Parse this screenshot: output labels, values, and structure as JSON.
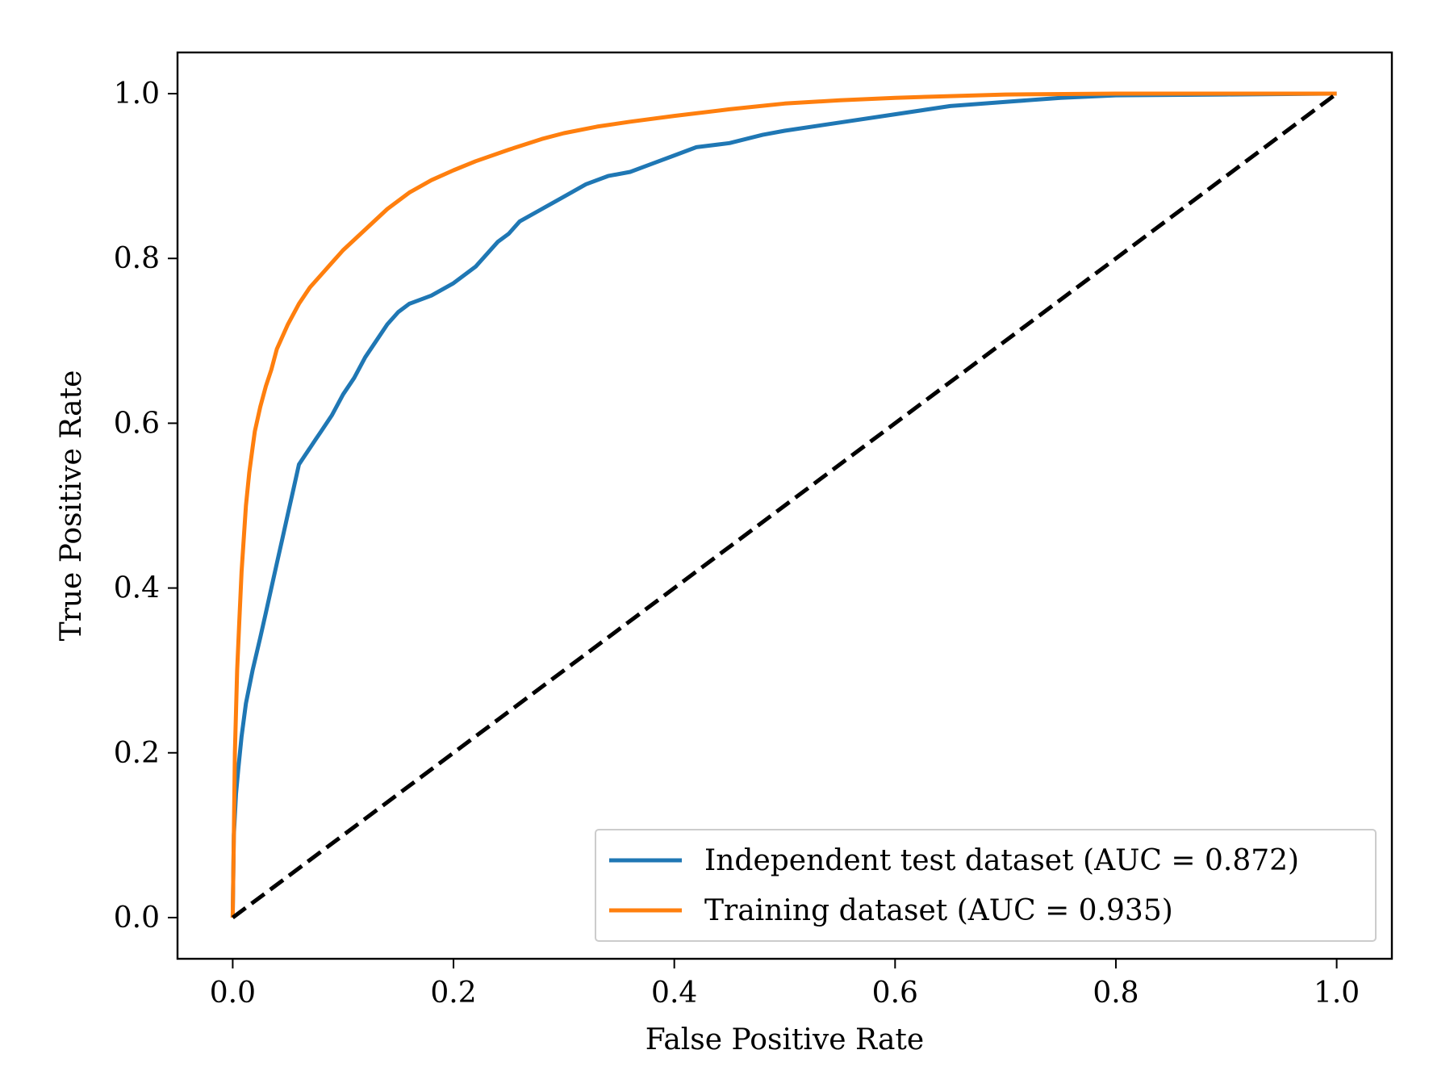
{
  "chart_data": {
    "type": "line",
    "title": "",
    "xlabel": "False Positive Rate",
    "ylabel": "True Positive Rate",
    "xlim": [
      -0.05,
      1.05
    ],
    "ylim": [
      -0.05,
      1.05
    ],
    "xticks": [
      0.0,
      0.2,
      0.4,
      0.6,
      0.8,
      1.0
    ],
    "xtick_labels": [
      "0.0",
      "0.2",
      "0.4",
      "0.6",
      "0.8",
      "1.0"
    ],
    "yticks": [
      0.0,
      0.2,
      0.4,
      0.6,
      0.8,
      1.0
    ],
    "ytick_labels": [
      "0.0",
      "0.2",
      "0.4",
      "0.6",
      "0.8",
      "1.0"
    ],
    "grid": false,
    "legend_position": "lower-right",
    "series": [
      {
        "name": "Independent test dataset (AUC = 0.872)",
        "color": "#1f77b4",
        "style": "solid",
        "x": [
          0.0,
          0.001,
          0.003,
          0.005,
          0.008,
          0.012,
          0.018,
          0.025,
          0.03,
          0.035,
          0.04,
          0.045,
          0.05,
          0.055,
          0.06,
          0.065,
          0.07,
          0.075,
          0.08,
          0.09,
          0.1,
          0.11,
          0.12,
          0.13,
          0.14,
          0.15,
          0.16,
          0.17,
          0.18,
          0.2,
          0.22,
          0.24,
          0.25,
          0.26,
          0.28,
          0.3,
          0.32,
          0.34,
          0.36,
          0.38,
          0.4,
          0.42,
          0.45,
          0.48,
          0.5,
          0.55,
          0.6,
          0.65,
          0.7,
          0.75,
          0.8,
          0.9,
          1.0
        ],
        "y": [
          0.0,
          0.1,
          0.15,
          0.18,
          0.22,
          0.26,
          0.3,
          0.34,
          0.37,
          0.4,
          0.43,
          0.46,
          0.49,
          0.52,
          0.55,
          0.56,
          0.57,
          0.58,
          0.59,
          0.61,
          0.635,
          0.655,
          0.68,
          0.7,
          0.72,
          0.735,
          0.745,
          0.75,
          0.755,
          0.77,
          0.79,
          0.82,
          0.83,
          0.845,
          0.86,
          0.875,
          0.89,
          0.9,
          0.905,
          0.915,
          0.925,
          0.935,
          0.94,
          0.95,
          0.955,
          0.965,
          0.975,
          0.985,
          0.99,
          0.995,
          0.998,
          0.999,
          1.0
        ]
      },
      {
        "name": "Training dataset (AUC = 0.935)",
        "color": "#ff7f0e",
        "style": "solid",
        "x": [
          0.0,
          0.001,
          0.002,
          0.004,
          0.006,
          0.008,
          0.01,
          0.012,
          0.015,
          0.018,
          0.02,
          0.025,
          0.03,
          0.035,
          0.04,
          0.05,
          0.06,
          0.07,
          0.08,
          0.09,
          0.1,
          0.12,
          0.14,
          0.16,
          0.18,
          0.2,
          0.22,
          0.25,
          0.28,
          0.3,
          0.33,
          0.36,
          0.4,
          0.45,
          0.5,
          0.55,
          0.6,
          0.65,
          0.7,
          0.8,
          0.9,
          1.0
        ],
        "y": [
          0.0,
          0.1,
          0.2,
          0.3,
          0.36,
          0.42,
          0.46,
          0.5,
          0.54,
          0.57,
          0.59,
          0.62,
          0.645,
          0.665,
          0.69,
          0.72,
          0.745,
          0.765,
          0.78,
          0.795,
          0.81,
          0.835,
          0.86,
          0.88,
          0.895,
          0.907,
          0.918,
          0.932,
          0.945,
          0.952,
          0.96,
          0.966,
          0.973,
          0.981,
          0.988,
          0.992,
          0.995,
          0.997,
          0.999,
          1.0,
          1.0,
          1.0
        ]
      },
      {
        "name": "",
        "color": "#000000",
        "style": "dashed",
        "x": [
          0.0,
          1.0
        ],
        "y": [
          0.0,
          1.0
        ]
      }
    ]
  }
}
